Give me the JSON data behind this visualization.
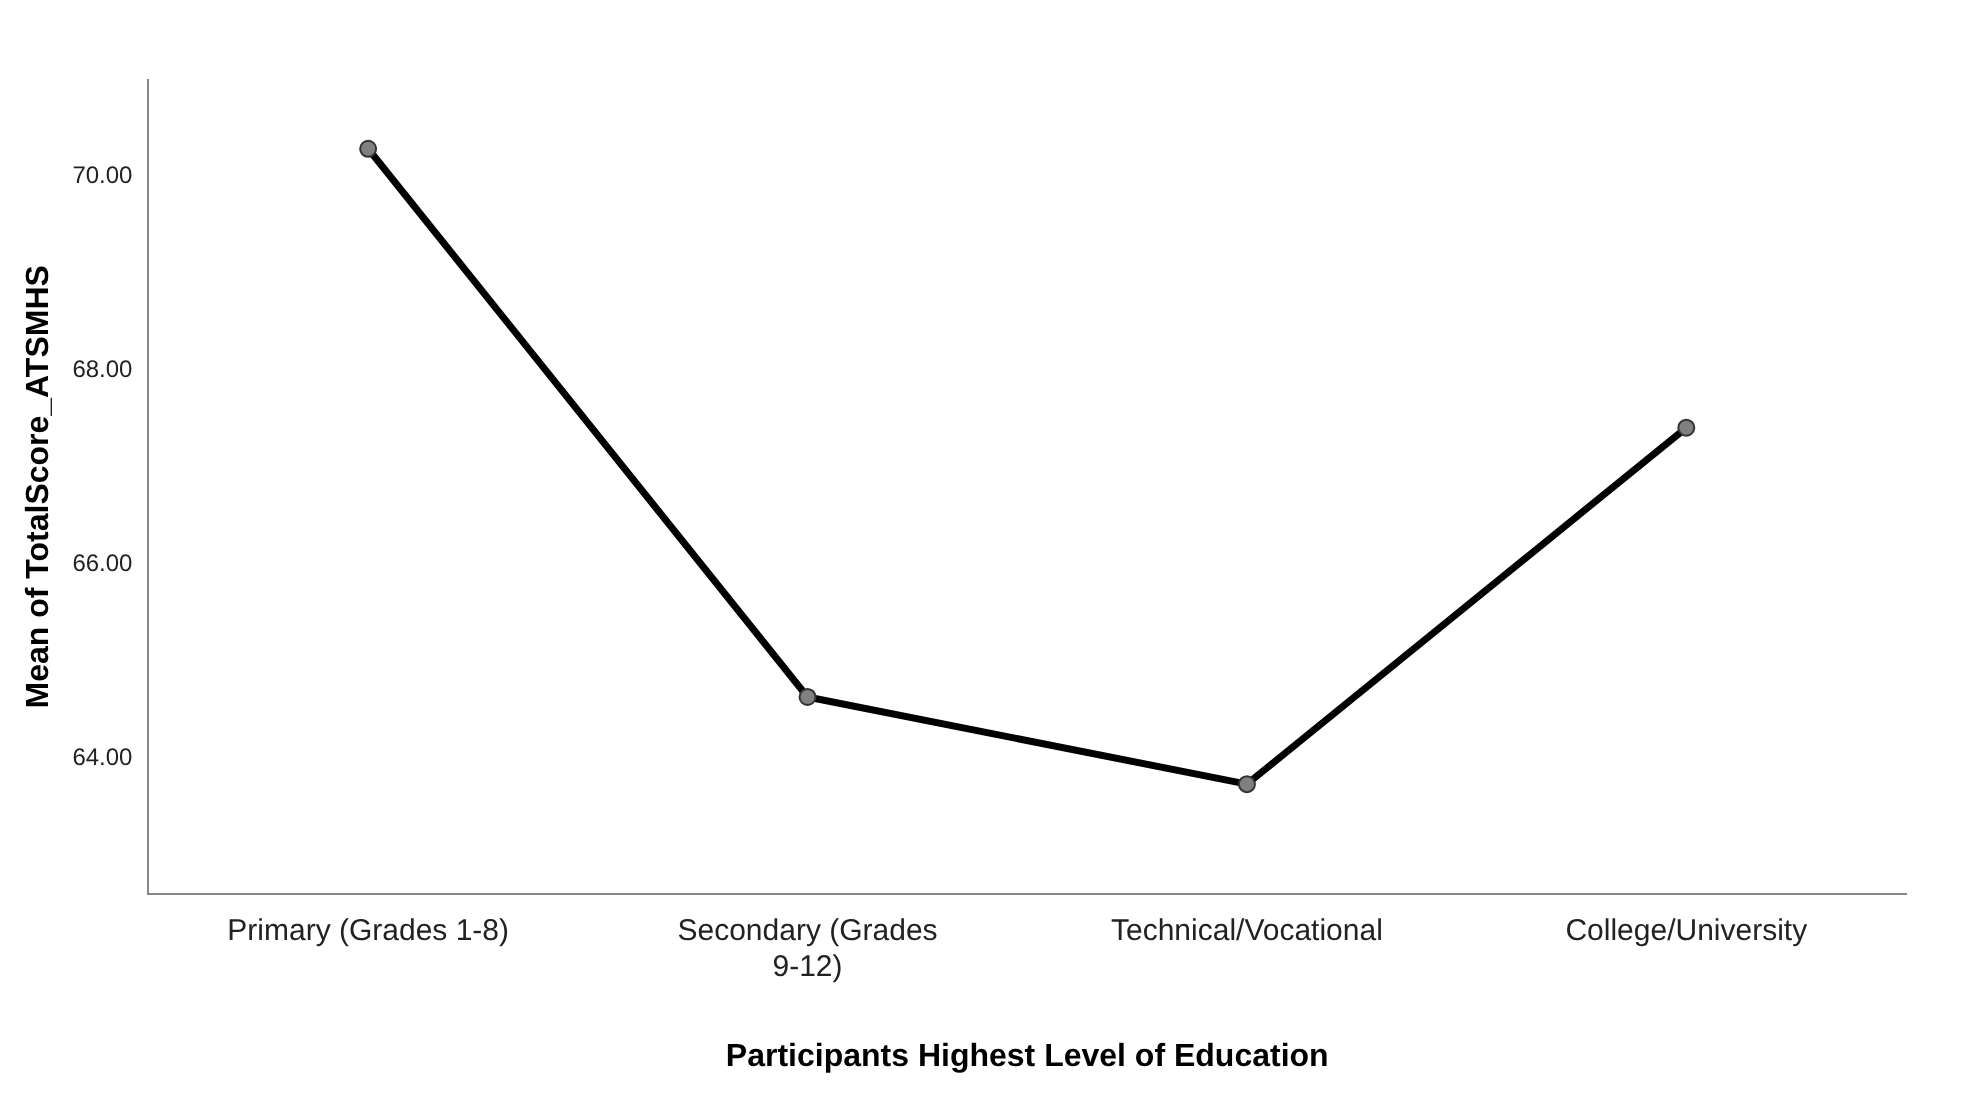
{
  "chart_data": {
    "type": "line",
    "xlabel": "Participants Highest Level of Education",
    "ylabel": "Mean of TotalScore_ATSMHS",
    "categories": [
      "Primary (Grades 1-8)",
      "Secondary (Grades 9-12)",
      "Technical/Vocational",
      "College/University"
    ],
    "series": [
      {
        "color": "#000000",
        "values": [
          70.29,
          64.63,
          63.73,
          67.41
        ]
      }
    ],
    "ylim": [
      62.6,
      71.0
    ],
    "yticks": [
      {
        "value": 64,
        "label": "64.00"
      },
      {
        "value": 66,
        "label": "66.00"
      },
      {
        "value": 68,
        "label": "68.00"
      },
      {
        "value": 70,
        "label": "70.00"
      }
    ],
    "grid": false,
    "legend": false,
    "marker": "circle",
    "line_style": "solid"
  }
}
